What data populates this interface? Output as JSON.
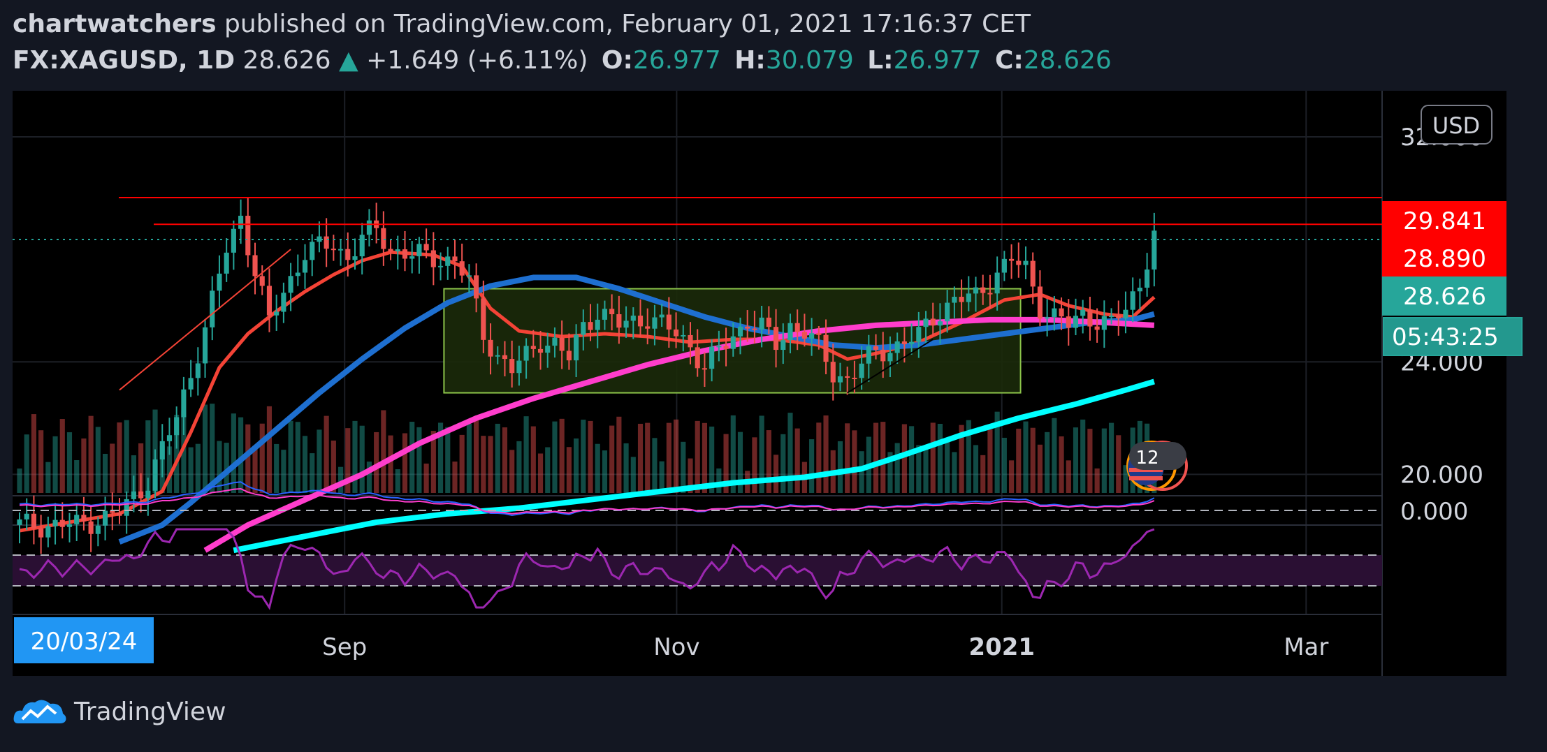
{
  "header": {
    "author": "chartwatchers",
    "publish_text": "published on TradingView.com, February 01, 2021 17:16:37 CET",
    "symbol": "FX:XAGUSD, 1D",
    "last": "28.626",
    "change": "+1.649 (+6.11%)",
    "o_label": "O:",
    "o": "26.977",
    "h_label": "H:",
    "h": "30.079",
    "l_label": "L:",
    "l": "26.977",
    "c_label": "C:",
    "c": "28.626"
  },
  "currency_button": "USD",
  "date_badge": "20/03/24",
  "price_badges": [
    {
      "text": "29.841",
      "value": 29.841,
      "color": "#ff0000"
    },
    {
      "text": "28.890",
      "value": 28.89,
      "color": "#ff0000"
    },
    {
      "text": "28.626",
      "value": 28.626,
      "color": "#26a69a"
    }
  ],
  "countdown": "05:43:25",
  "event_count": "12",
  "footer": {
    "brand": "TradingView"
  },
  "colors": {
    "background": "#000000",
    "panel": "#131722",
    "up": "#26a69a",
    "down": "#ef5350",
    "ma_short": "#f44336",
    "ma_mid": "#1e6fd0",
    "ma_long": "#ff3dcc",
    "ma_longest": "#00ffff",
    "box_fill": "#1b2a0a",
    "box_stroke": "#8bc34a",
    "rsi": "#9c27b0"
  },
  "chart_data": {
    "type": "candlestick",
    "instrument": "FX:XAGUSD",
    "interval": "1D",
    "x_ticks": [
      "Sep",
      "Nov",
      "2021",
      "Mar"
    ],
    "price_ticks": [
      32.0,
      24.0,
      20.0
    ],
    "price_tick_labels": [
      "32.000",
      "24.000",
      "20.000"
    ],
    "indicator_tick_label": "0.000",
    "ylim": [
      18.0,
      32.0
    ],
    "horizontal_lines": [
      29.841,
      28.89
    ],
    "current_price_line": 28.626,
    "consolidation_box": {
      "x_start": 0.315,
      "x_end": 0.736,
      "price_low": 22.9,
      "price_high": 26.6
    },
    "n_bars": 160,
    "keypoints": [
      [
        0,
        18.2
      ],
      [
        8,
        18.2
      ],
      [
        14,
        18.6
      ],
      [
        18,
        19.8
      ],
      [
        22,
        22.0
      ],
      [
        26,
        25.2
      ],
      [
        29,
        28.0
      ],
      [
        31,
        29.2
      ],
      [
        33,
        27.2
      ],
      [
        35,
        25.4
      ],
      [
        37,
        26.5
      ],
      [
        40,
        27.9
      ],
      [
        44,
        28.2
      ],
      [
        46,
        27.7
      ],
      [
        48,
        28.4
      ],
      [
        50,
        28.7
      ],
      [
        52,
        28.0
      ],
      [
        55,
        27.8
      ],
      [
        58,
        27.7
      ],
      [
        61,
        27.6
      ],
      [
        63,
        26.8
      ],
      [
        65,
        25.0
      ],
      [
        67,
        24.2
      ],
      [
        69,
        23.7
      ],
      [
        71,
        24.2
      ],
      [
        73,
        24.8
      ],
      [
        75,
        24.6
      ],
      [
        77,
        24.1
      ],
      [
        79,
        25.3
      ],
      [
        81,
        25.8
      ],
      [
        84,
        25.3
      ],
      [
        88,
        25.6
      ],
      [
        92,
        25.0
      ],
      [
        94,
        24.6
      ],
      [
        96,
        23.8
      ],
      [
        98,
        24.4
      ],
      [
        100,
        24.9
      ],
      [
        102,
        25.5
      ],
      [
        104,
        25.2
      ],
      [
        106,
        24.6
      ],
      [
        108,
        25.3
      ],
      [
        110,
        25.1
      ],
      [
        112,
        24.5
      ],
      [
        114,
        23.6
      ],
      [
        116,
        23.4
      ],
      [
        118,
        23.9
      ],
      [
        120,
        24.3
      ],
      [
        123,
        24.6
      ],
      [
        126,
        24.9
      ],
      [
        128,
        25.6
      ],
      [
        131,
        26.2
      ],
      [
        134,
        26.3
      ],
      [
        137,
        27.2
      ],
      [
        139,
        27.6
      ],
      [
        141,
        27.3
      ],
      [
        143,
        26.0
      ],
      [
        145,
        25.6
      ],
      [
        147,
        25.3
      ],
      [
        149,
        25.7
      ],
      [
        151,
        25.5
      ],
      [
        153,
        25.3
      ],
      [
        155,
        25.9
      ],
      [
        157,
        26.8
      ],
      [
        158,
        27.7
      ],
      [
        159,
        28.6
      ]
    ],
    "moving_averages": [
      {
        "id": "ma_short",
        "keypoints": [
          [
            0,
            18.0
          ],
          [
            14,
            18.6
          ],
          [
            20,
            19.4
          ],
          [
            24,
            21.5
          ],
          [
            28,
            23.8
          ],
          [
            32,
            25.0
          ],
          [
            36,
            25.8
          ],
          [
            40,
            26.5
          ],
          [
            44,
            27.1
          ],
          [
            48,
            27.6
          ],
          [
            52,
            27.9
          ],
          [
            58,
            27.8
          ],
          [
            62,
            27.4
          ],
          [
            66,
            25.9
          ],
          [
            70,
            25.1
          ],
          [
            76,
            24.9
          ],
          [
            82,
            25.0
          ],
          [
            88,
            24.9
          ],
          [
            94,
            24.7
          ],
          [
            100,
            24.8
          ],
          [
            106,
            24.8
          ],
          [
            112,
            24.6
          ],
          [
            116,
            24.1
          ],
          [
            120,
            24.3
          ],
          [
            126,
            24.7
          ],
          [
            132,
            25.4
          ],
          [
            138,
            26.2
          ],
          [
            143,
            26.4
          ],
          [
            147,
            26.0
          ],
          [
            152,
            25.7
          ],
          [
            156,
            25.6
          ],
          [
            159,
            26.3
          ]
        ]
      },
      {
        "id": "ma_mid",
        "keypoints": [
          [
            14,
            17.6
          ],
          [
            20,
            18.2
          ],
          [
            24,
            19.0
          ],
          [
            30,
            20.3
          ],
          [
            36,
            21.6
          ],
          [
            42,
            22.9
          ],
          [
            48,
            24.1
          ],
          [
            54,
            25.2
          ],
          [
            60,
            26.1
          ],
          [
            66,
            26.7
          ],
          [
            72,
            27.0
          ],
          [
            78,
            27.0
          ],
          [
            84,
            26.6
          ],
          [
            90,
            26.1
          ],
          [
            96,
            25.6
          ],
          [
            102,
            25.2
          ],
          [
            108,
            24.9
          ],
          [
            114,
            24.6
          ],
          [
            120,
            24.5
          ],
          [
            126,
            24.6
          ],
          [
            132,
            24.8
          ],
          [
            138,
            25.0
          ],
          [
            144,
            25.2
          ],
          [
            150,
            25.4
          ],
          [
            156,
            25.5
          ],
          [
            159,
            25.7
          ]
        ]
      },
      {
        "id": "ma_long",
        "keypoints": [
          [
            26,
            17.3
          ],
          [
            32,
            18.2
          ],
          [
            40,
            19.1
          ],
          [
            48,
            20.0
          ],
          [
            56,
            21.1
          ],
          [
            64,
            22.0
          ],
          [
            72,
            22.7
          ],
          [
            80,
            23.3
          ],
          [
            88,
            23.9
          ],
          [
            96,
            24.4
          ],
          [
            104,
            24.8
          ],
          [
            112,
            25.1
          ],
          [
            120,
            25.3
          ],
          [
            128,
            25.4
          ],
          [
            136,
            25.5
          ],
          [
            144,
            25.5
          ],
          [
            152,
            25.4
          ],
          [
            159,
            25.3
          ]
        ]
      },
      {
        "id": "ma_longest",
        "keypoints": [
          [
            30,
            17.3
          ],
          [
            40,
            17.8
          ],
          [
            50,
            18.3
          ],
          [
            60,
            18.6
          ],
          [
            70,
            18.8
          ],
          [
            80,
            19.1
          ],
          [
            90,
            19.4
          ],
          [
            100,
            19.7
          ],
          [
            110,
            19.9
          ],
          [
            118,
            20.2
          ],
          [
            124,
            20.7
          ],
          [
            132,
            21.4
          ],
          [
            140,
            22.0
          ],
          [
            148,
            22.5
          ],
          [
            155,
            23.0
          ],
          [
            159,
            23.3
          ]
        ]
      }
    ],
    "trend_lines": [
      {
        "from": [
          14,
          23.0
        ],
        "to": [
          38,
          28.0
        ],
        "color": "#f44336"
      },
      {
        "from": [
          116,
          22.9
        ],
        "to": [
          128,
          24.8
        ],
        "color": "#000000"
      }
    ]
  }
}
